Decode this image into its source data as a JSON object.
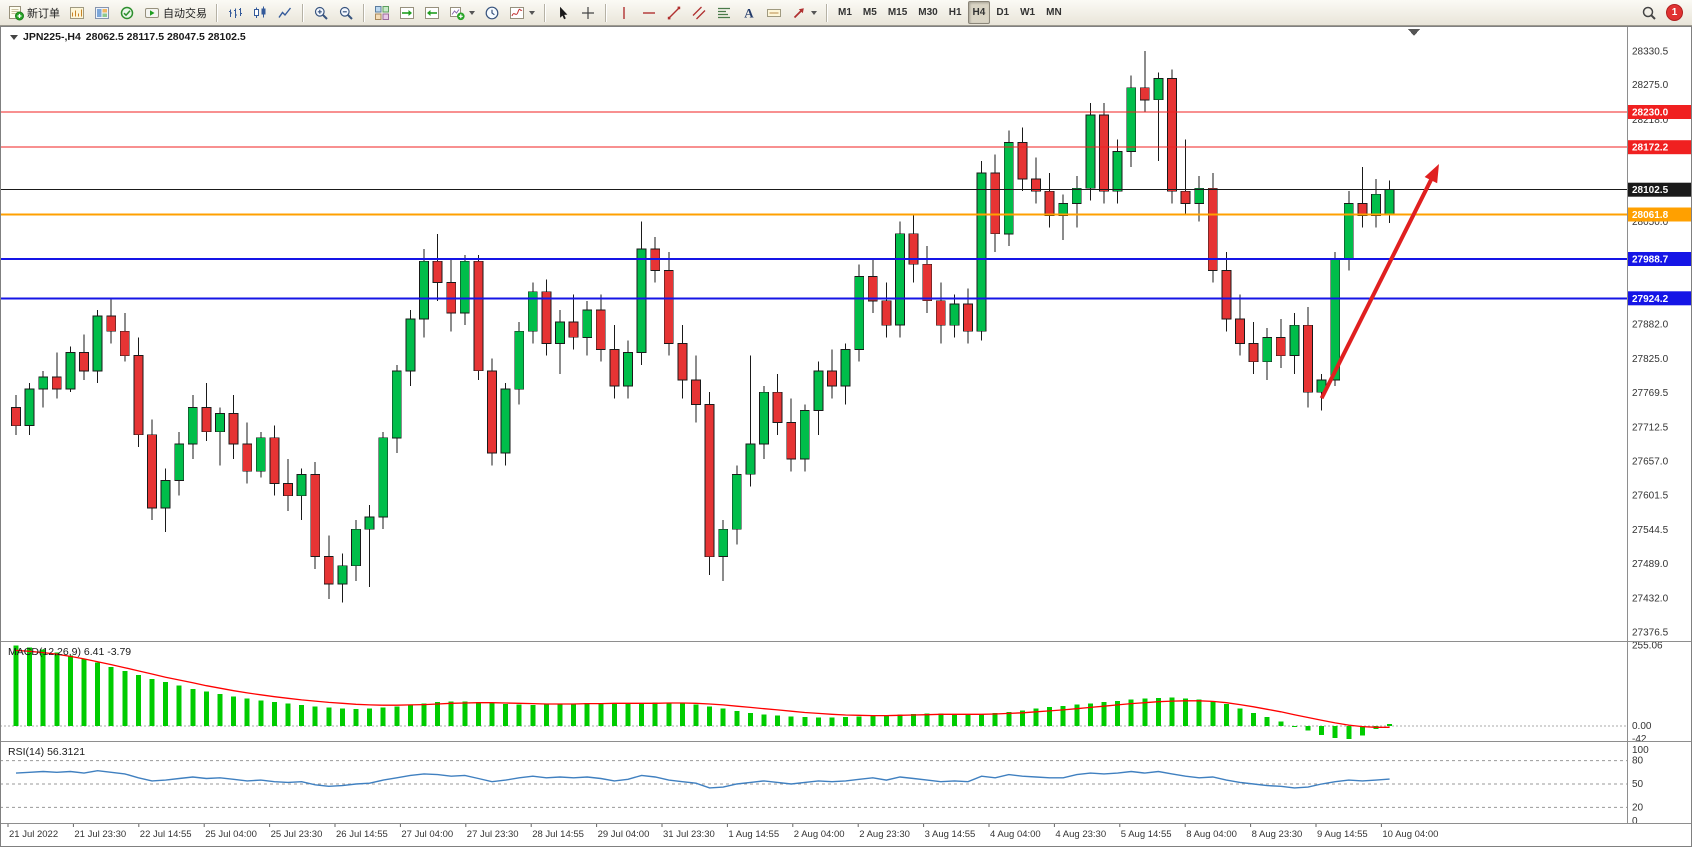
{
  "toolbar": {
    "groups": [
      [
        {
          "name": "new-order-button",
          "icon": "new-order",
          "label": "新订单"
        },
        {
          "name": "chart-window-button",
          "icon": "chart-window"
        },
        {
          "name": "profiles-button",
          "icon": "profiles"
        },
        {
          "name": "community-button",
          "icon": "community"
        },
        {
          "name": "auto-trading-button",
          "icon": "auto-trading",
          "label": "自动交易"
        }
      ],
      [
        {
          "name": "bar-chart-button",
          "icon": "bars-chart"
        },
        {
          "name": "candlestick-chart-button",
          "icon": "candles-chart"
        },
        {
          "name": "line-chart-button",
          "icon": "line-chart"
        }
      ],
      [
        {
          "name": "zoom-in-button",
          "icon": "zoom-in"
        },
        {
          "name": "zoom-out-button",
          "icon": "zoom-out"
        }
      ],
      [
        {
          "name": "tile-windows-button",
          "icon": "tile-windows"
        },
        {
          "name": "auto-scroll-button",
          "icon": "auto-scroll"
        },
        {
          "name": "chart-shift-button",
          "icon": "chart-shift"
        },
        {
          "name": "new-chart-button",
          "icon": "new-chart",
          "dropdown": true
        },
        {
          "name": "refresh-clock-button",
          "icon": "clock"
        },
        {
          "name": "indicators-button",
          "icon": "indicators",
          "dropdown": true
        }
      ],
      [
        {
          "name": "cursor-button",
          "icon": "cursor"
        },
        {
          "name": "crosshair-button",
          "icon": "crosshair"
        }
      ],
      [
        {
          "name": "vertical-line-button",
          "icon": "vertical-line"
        },
        {
          "name": "horizontal-line-button",
          "icon": "horizontal-line"
        },
        {
          "name": "trendline-button",
          "icon": "trendline"
        },
        {
          "name": "channel-button",
          "icon": "channel"
        },
        {
          "name": "fibonacci-button",
          "icon": "fibonacci"
        },
        {
          "name": "text-button",
          "icon": "text"
        },
        {
          "name": "text-label-button",
          "icon": "text-label"
        },
        {
          "name": "arrows-button",
          "icon": "arrow-object",
          "dropdown": true
        }
      ]
    ],
    "timeframes": [
      "M1",
      "M5",
      "M15",
      "M30",
      "H1",
      "H4",
      "D1",
      "W1",
      "MN"
    ],
    "active_timeframe": "H4",
    "search_icon": "magnifier",
    "notification_count": "1"
  },
  "chart": {
    "symbol": "JPN225-,H4",
    "ohlc": "28062.5 28117.5 28047.5 28102.5",
    "scale": {
      "max": 28345,
      "min": 27360
    },
    "colors": {
      "up": "#00BE4A",
      "down": "#E63434",
      "outline": "#1A1A1A"
    },
    "price_axis_labels": [
      "28330.5",
      "28275.0",
      "28218.0",
      "28050.0",
      "27882.0",
      "27825.0",
      "27769.5",
      "27712.5",
      "27657.0",
      "27601.5",
      "27544.5",
      "27489.0",
      "27432.0",
      "27376.5"
    ],
    "price_lines": [
      {
        "label": "28230.0",
        "value": 28230.0,
        "color": "#F02020",
        "width": 1
      },
      {
        "label": "28172.2",
        "value": 28172.2,
        "color": "#F02020",
        "width": 1
      },
      {
        "label": "28102.5",
        "value": 28102.5,
        "color": "#1A1A1A",
        "width": 1
      },
      {
        "label": "28061.8",
        "value": 28061.8,
        "color": "#FFA000",
        "width": 2
      },
      {
        "label": "27988.7",
        "value": 27988.7,
        "color": "#1515E6",
        "width": 2
      },
      {
        "label": "27924.2",
        "value": 27924.2,
        "color": "#1515E6",
        "width": 2
      }
    ],
    "trend_arrow": {
      "from_candle": 96,
      "from_price": 27760,
      "to_candle": 104.3,
      "to_price": 28130,
      "color": "#E02020"
    },
    "shift_marker": "triangle-down",
    "time_axis_labels": [
      "21 Jul 2022",
      "21 Jul 23:30",
      "22 Jul 14:55",
      "25 Jul 04:00",
      "25 Jul 23:30",
      "26 Jul 14:55",
      "27 Jul 04:00",
      "27 Jul 23:30",
      "28 Jul 14:55",
      "29 Jul 04:00",
      "31 Jul 23:30",
      "1 Aug 14:55",
      "2 Aug 04:00",
      "2 Aug 23:30",
      "3 Aug 14:55",
      "4 Aug 04:00",
      "4 Aug 23:30",
      "5 Aug 14:55",
      "8 Aug 04:00",
      "8 Aug 23:30",
      "9 Aug 14:55",
      "10 Aug 04:00"
    ],
    "candles": [
      [
        27745,
        27765,
        27700,
        27715
      ],
      [
        27715,
        27785,
        27700,
        27775
      ],
      [
        27775,
        27805,
        27745,
        27795
      ],
      [
        27795,
        27835,
        27760,
        27775
      ],
      [
        27775,
        27845,
        27770,
        27835
      ],
      [
        27835,
        27865,
        27790,
        27805
      ],
      [
        27805,
        27905,
        27785,
        27895
      ],
      [
        27895,
        27925,
        27850,
        27870
      ],
      [
        27870,
        27900,
        27820,
        27830
      ],
      [
        27830,
        27860,
        27680,
        27700
      ],
      [
        27700,
        27725,
        27560,
        27580
      ],
      [
        27580,
        27645,
        27540,
        27625
      ],
      [
        27625,
        27705,
        27600,
        27685
      ],
      [
        27685,
        27765,
        27660,
        27745
      ],
      [
        27745,
        27785,
        27690,
        27705
      ],
      [
        27705,
        27745,
        27650,
        27735
      ],
      [
        27735,
        27765,
        27660,
        27685
      ],
      [
        27685,
        27720,
        27620,
        27640
      ],
      [
        27640,
        27705,
        27630,
        27695
      ],
      [
        27695,
        27715,
        27600,
        27620
      ],
      [
        27620,
        27660,
        27575,
        27600
      ],
      [
        27600,
        27645,
        27560,
        27635
      ],
      [
        27635,
        27655,
        27480,
        27500
      ],
      [
        27500,
        27535,
        27430,
        27455
      ],
      [
        27455,
        27505,
        27425,
        27485
      ],
      [
        27485,
        27560,
        27460,
        27545
      ],
      [
        27545,
        27585,
        27450,
        27565
      ],
      [
        27565,
        27705,
        27545,
        27695
      ],
      [
        27695,
        27815,
        27670,
        27805
      ],
      [
        27805,
        27905,
        27780,
        27890
      ],
      [
        27890,
        28005,
        27860,
        27985
      ],
      [
        27985,
        28030,
        27920,
        27950
      ],
      [
        27950,
        27990,
        27870,
        27900
      ],
      [
        27900,
        27995,
        27880,
        27985
      ],
      [
        27985,
        27995,
        27790,
        27805
      ],
      [
        27805,
        27825,
        27650,
        27670
      ],
      [
        27670,
        27785,
        27650,
        27775
      ],
      [
        27775,
        27885,
        27750,
        27870
      ],
      [
        27870,
        27950,
        27850,
        27935
      ],
      [
        27935,
        27955,
        27830,
        27850
      ],
      [
        27850,
        27905,
        27800,
        27885
      ],
      [
        27885,
        27930,
        27840,
        27860
      ],
      [
        27860,
        27920,
        27830,
        27905
      ],
      [
        27905,
        27930,
        27820,
        27840
      ],
      [
        27840,
        27880,
        27760,
        27780
      ],
      [
        27780,
        27855,
        27760,
        27835
      ],
      [
        27835,
        28050,
        27815,
        28005
      ],
      [
        28005,
        28025,
        27950,
        27970
      ],
      [
        27970,
        28000,
        27830,
        27850
      ],
      [
        27850,
        27880,
        27760,
        27790
      ],
      [
        27790,
        27830,
        27720,
        27750
      ],
      [
        27750,
        27770,
        27470,
        27500
      ],
      [
        27500,
        27560,
        27460,
        27545
      ],
      [
        27545,
        27650,
        27520,
        27635
      ],
      [
        27635,
        27830,
        27615,
        27685
      ],
      [
        27685,
        27780,
        27660,
        27770
      ],
      [
        27770,
        27800,
        27700,
        27720
      ],
      [
        27720,
        27760,
        27640,
        27660
      ],
      [
        27660,
        27750,
        27640,
        27740
      ],
      [
        27740,
        27820,
        27700,
        27805
      ],
      [
        27805,
        27840,
        27760,
        27780
      ],
      [
        27780,
        27850,
        27750,
        27840
      ],
      [
        27840,
        27980,
        27820,
        27960
      ],
      [
        27960,
        27990,
        27900,
        27920
      ],
      [
        27920,
        27950,
        27860,
        27880
      ],
      [
        27880,
        28050,
        27860,
        28030
      ],
      [
        28030,
        28060,
        27950,
        27980
      ],
      [
        27980,
        28010,
        27900,
        27920
      ],
      [
        27920,
        27950,
        27850,
        27880
      ],
      [
        27880,
        27930,
        27860,
        27915
      ],
      [
        27915,
        27940,
        27850,
        27870
      ],
      [
        27870,
        28150,
        27855,
        28130
      ],
      [
        28130,
        28160,
        28000,
        28030
      ],
      [
        28030,
        28200,
        28010,
        28180
      ],
      [
        28180,
        28205,
        28100,
        28120
      ],
      [
        28120,
        28155,
        28080,
        28100
      ],
      [
        28100,
        28130,
        28040,
        28060
      ],
      [
        28060,
        28095,
        28020,
        28080
      ],
      [
        28080,
        28125,
        28040,
        28105
      ],
      [
        28105,
        28245,
        28085,
        28225
      ],
      [
        28225,
        28245,
        28080,
        28100
      ],
      [
        28100,
        28185,
        28080,
        28165
      ],
      [
        28165,
        28290,
        28140,
        28270
      ],
      [
        28270,
        28330,
        28230,
        28250
      ],
      [
        28250,
        28295,
        28150,
        28285
      ],
      [
        28285,
        28300,
        28080,
        28100
      ],
      [
        28100,
        28185,
        28060,
        28080
      ],
      [
        28080,
        28125,
        28050,
        28105
      ],
      [
        28105,
        28130,
        27950,
        27970
      ],
      [
        27970,
        28000,
        27870,
        27890
      ],
      [
        27890,
        27930,
        27830,
        27850
      ],
      [
        27850,
        27885,
        27800,
        27820
      ],
      [
        27820,
        27875,
        27790,
        27860
      ],
      [
        27860,
        27890,
        27810,
        27830
      ],
      [
        27830,
        27900,
        27800,
        27880
      ],
      [
        27880,
        27910,
        27745,
        27770
      ],
      [
        27770,
        27800,
        27740,
        27790
      ],
      [
        27790,
        28000,
        27780,
        27990
      ],
      [
        27990,
        28100,
        27970,
        28080
      ],
      [
        28080,
        28140,
        28040,
        28060
      ],
      [
        28060,
        28120,
        28040,
        28095
      ],
      [
        28062.5,
        28117.5,
        28047.5,
        28102.5
      ]
    ]
  },
  "indicators": {
    "macd": {
      "label": "MACD(12,26,9) 6.41 -3.79",
      "axis_labels": [
        "255.06",
        "0.00",
        "-42"
      ],
      "colors": {
        "histogram": "#00CC00",
        "signal": "#FF0000"
      },
      "histogram": [
        255,
        250,
        243,
        234,
        224,
        213,
        201,
        188,
        175,
        162,
        150,
        139,
        128,
        118,
        109,
        101,
        94,
        87,
        81,
        76,
        71,
        66,
        62,
        58,
        55,
        54,
        55,
        58,
        62,
        67,
        72,
        76,
        78,
        78,
        76,
        73,
        70,
        68,
        67,
        68,
        70,
        72,
        73,
        73,
        72,
        70,
        72,
        74,
        74,
        72,
        68,
        62,
        55,
        48,
        42,
        37,
        33,
        30,
        28,
        27,
        27,
        28,
        30,
        32,
        34,
        36,
        38,
        39,
        39,
        38,
        37,
        38,
        41,
        45,
        50,
        55,
        60,
        64,
        68,
        72,
        76,
        80,
        84,
        87,
        89,
        90,
        88,
        84,
        78,
        70,
        55,
        42,
        28,
        14,
        0,
        -14,
        -28,
        -38,
        -42,
        -30,
        -10,
        6
      ],
      "signal": [
        240,
        237,
        233,
        228,
        221,
        213,
        204,
        195,
        185,
        175,
        165,
        155,
        146,
        137,
        128,
        120,
        112,
        105,
        99,
        93,
        88,
        83,
        79,
        75,
        72,
        69,
        67,
        66,
        66,
        67,
        68,
        70,
        72,
        73,
        74,
        74,
        73,
        72,
        71,
        70,
        70,
        70,
        71,
        71,
        72,
        72,
        72,
        72,
        73,
        73,
        72,
        70,
        67,
        63,
        59,
        55,
        51,
        47,
        43,
        40,
        37,
        35,
        34,
        33,
        33,
        34,
        35,
        36,
        37,
        37,
        37,
        37,
        38,
        40,
        42,
        45,
        48,
        51,
        55,
        59,
        63,
        67,
        71,
        74,
        77,
        79,
        80,
        80,
        78,
        74,
        68,
        61,
        53,
        45,
        36,
        27,
        18,
        10,
        3,
        -2,
        -4,
        -4
      ]
    },
    "rsi": {
      "label": "RSI(14) 56.3121",
      "axis_labels": [
        "100",
        "80",
        "50",
        "20",
        "0"
      ],
      "levels": [
        80,
        50,
        20
      ],
      "color": "#4080C0",
      "values": [
        64,
        65,
        66,
        65,
        66,
        64,
        67,
        65,
        63,
        58,
        54,
        55,
        57,
        59,
        57,
        58,
        56,
        54,
        55,
        53,
        52,
        53,
        49,
        47,
        48,
        50,
        51,
        55,
        58,
        61,
        63,
        62,
        60,
        61,
        57,
        53,
        55,
        58,
        60,
        58,
        59,
        58,
        59,
        57,
        54,
        56,
        61,
        59,
        55,
        53,
        51,
        45,
        46,
        50,
        52,
        54,
        52,
        50,
        52,
        54,
        53,
        54,
        56,
        58,
        55,
        59,
        57,
        55,
        53,
        54,
        53,
        60,
        58,
        62,
        60,
        59,
        58,
        58,
        62,
        64,
        63,
        64,
        66,
        64,
        66,
        63,
        60,
        58,
        59,
        55,
        52,
        50,
        48,
        47,
        45,
        46,
        50,
        53,
        55,
        54,
        55,
        56.31
      ]
    }
  }
}
